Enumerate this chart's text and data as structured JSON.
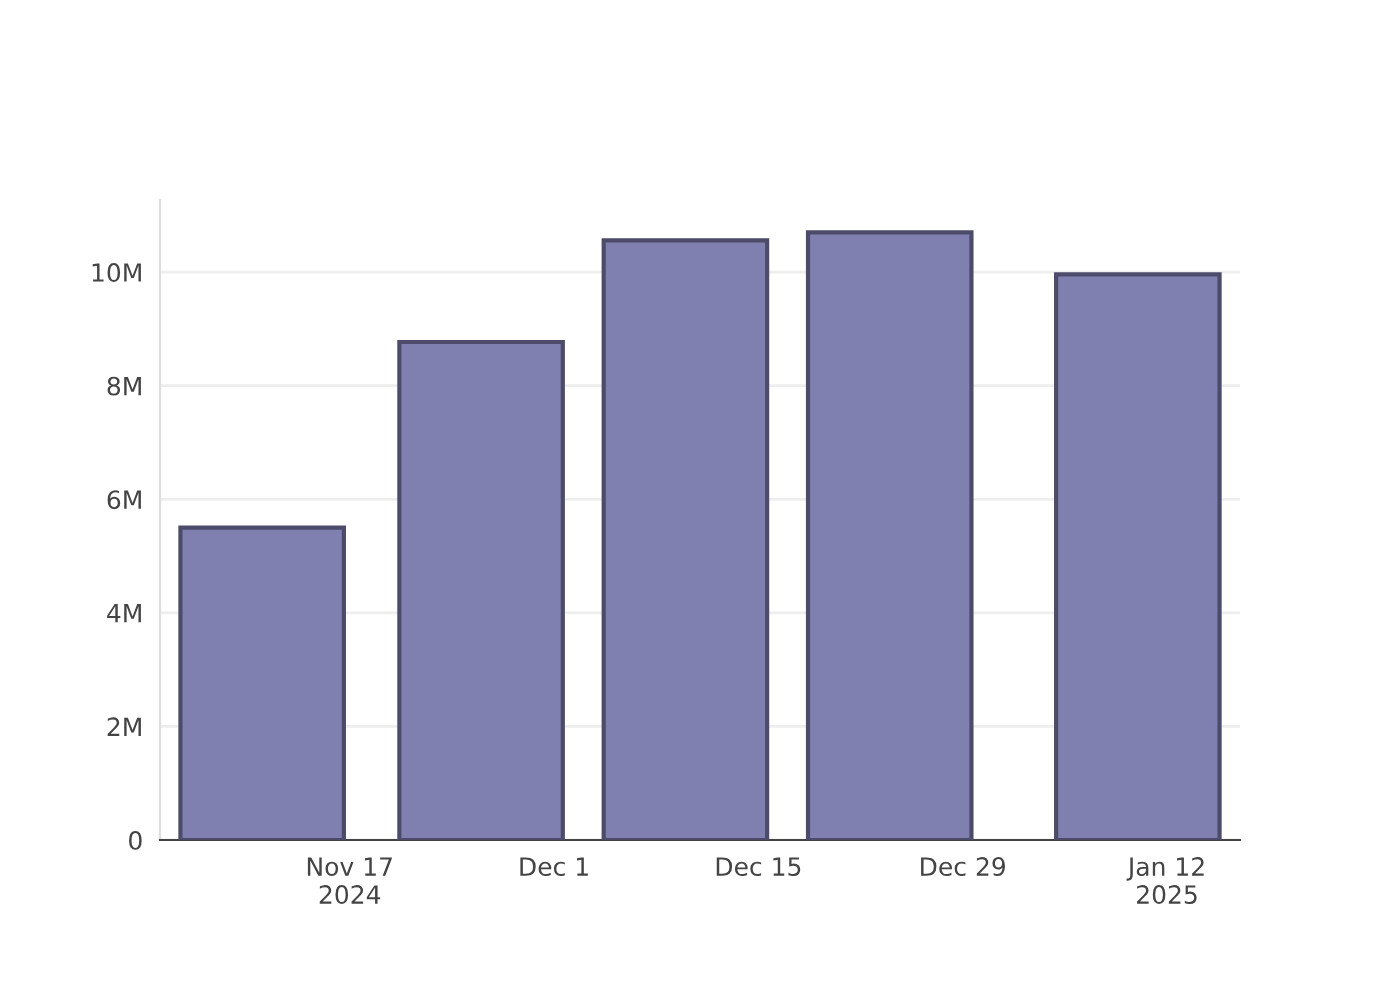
{
  "chart_data": {
    "type": "bar",
    "x": [
      "2024-11-11",
      "2024-11-26",
      "2024-12-10",
      "2024-12-24",
      "2025-01-10"
    ],
    "series": [
      {
        "color": "#7f7fb0",
        "values": [
          5500000,
          8770000,
          10560000,
          10700000,
          9960000
        ]
      }
    ],
    "xlim": [
      "2024-11-04",
      "2025-01-17"
    ],
    "xticks": [
      {
        "value": "2024-11-17",
        "label": "Nov 17\n2024"
      },
      {
        "value": "2024-12-01",
        "label": "Dec 1"
      },
      {
        "value": "2024-12-15",
        "label": "Dec 15"
      },
      {
        "value": "2024-12-29",
        "label": "Dec 29"
      },
      {
        "value": "2025-01-12",
        "label": "Jan 12\n2025"
      }
    ],
    "ylim": [
      0,
      11270000
    ],
    "yticks": [
      0,
      {
        "value": 2000000,
        "label": "2M"
      },
      {
        "value": 4000000,
        "label": "4M"
      },
      {
        "value": 6000000,
        "label": "6M"
      },
      {
        "value": 8000000,
        "label": "8M"
      },
      {
        "value": 10000000,
        "label": "10M"
      }
    ],
    "grid": "y"
  }
}
